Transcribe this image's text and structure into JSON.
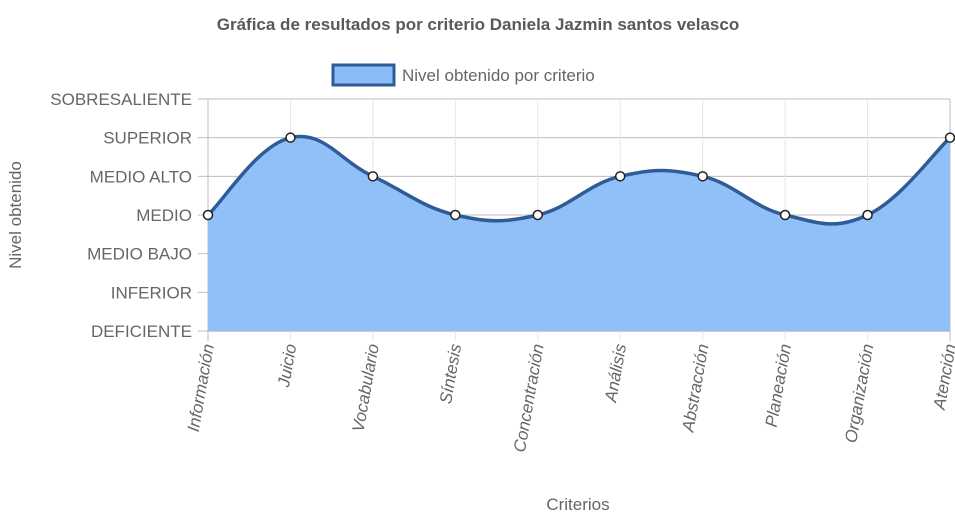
{
  "chart_data": {
    "type": "area",
    "title": "Gráfica de resultados por criterio Daniela Jazmin santos velasco",
    "xlabel": "Criterios",
    "ylabel": "Nivel obtenido",
    "y_levels": [
      "DEFICIENTE",
      "INFERIOR",
      "MEDIO BAJO",
      "MEDIO",
      "MEDIO ALTO",
      "SUPERIOR",
      "SOBRESALIENTE"
    ],
    "categories": [
      "Información",
      "Juicio",
      "Vocabulario",
      "Síntesis",
      "Concentración",
      "Análisis",
      "Abstracción",
      "Planeación",
      "Organización",
      "Atención"
    ],
    "series": [
      {
        "name": "Nivel obtenido por criterio",
        "values": [
          3,
          5,
          4,
          3,
          3,
          4,
          4,
          3,
          3,
          5
        ],
        "fill_color": "#8bbcf7",
        "line_color": "#2f5c96"
      }
    ],
    "ylim": [
      0,
      6
    ],
    "grid": true,
    "legend_position": "top"
  }
}
